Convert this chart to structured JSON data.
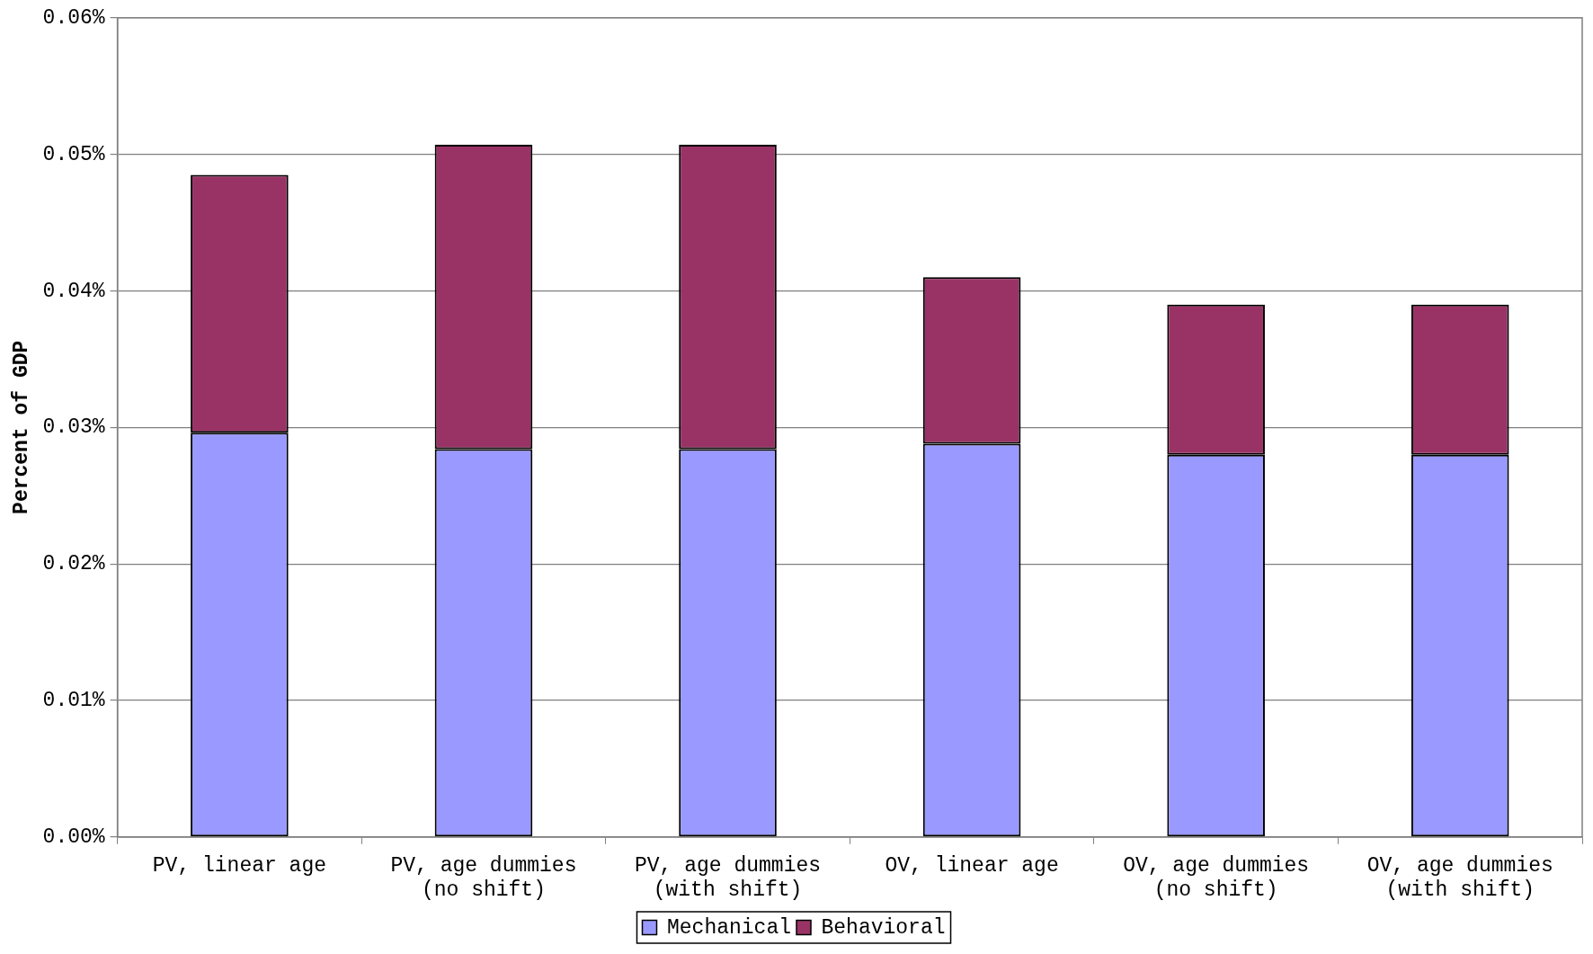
{
  "chart_data": {
    "type": "bar",
    "ylabel": "Percent of GDP",
    "categories": [
      "PV, linear age",
      "PV, age dummies\n(no shift)",
      "PV, age dummies\n(with shift)",
      "OV, linear age",
      "OV, age dummies\n(no shift)",
      "OV, age dummies\n(with shift)"
    ],
    "series": [
      {
        "name": "Mechanical",
        "color": "#9999ff",
        "values": [
          0.0296,
          0.0284,
          0.0284,
          0.0288,
          0.028,
          0.028
        ]
      },
      {
        "name": "Behavioral",
        "color": "#993366",
        "values": [
          0.0189,
          0.0223,
          0.0223,
          0.0122,
          0.011,
          0.011
        ]
      }
    ],
    "stacked": true,
    "ylim": [
      0,
      0.06
    ],
    "yticks": [
      {
        "value": 0,
        "label": "0.00%"
      },
      {
        "value": 0.01,
        "label": "0.01%"
      },
      {
        "value": 0.02,
        "label": "0.02%"
      },
      {
        "value": 0.03,
        "label": "0.03%"
      },
      {
        "value": 0.04,
        "label": "0.04%"
      },
      {
        "value": 0.05,
        "label": "0.05%"
      },
      {
        "value": 0.06,
        "label": "0.06%"
      }
    ],
    "grid": "y",
    "legend": "bottom"
  }
}
